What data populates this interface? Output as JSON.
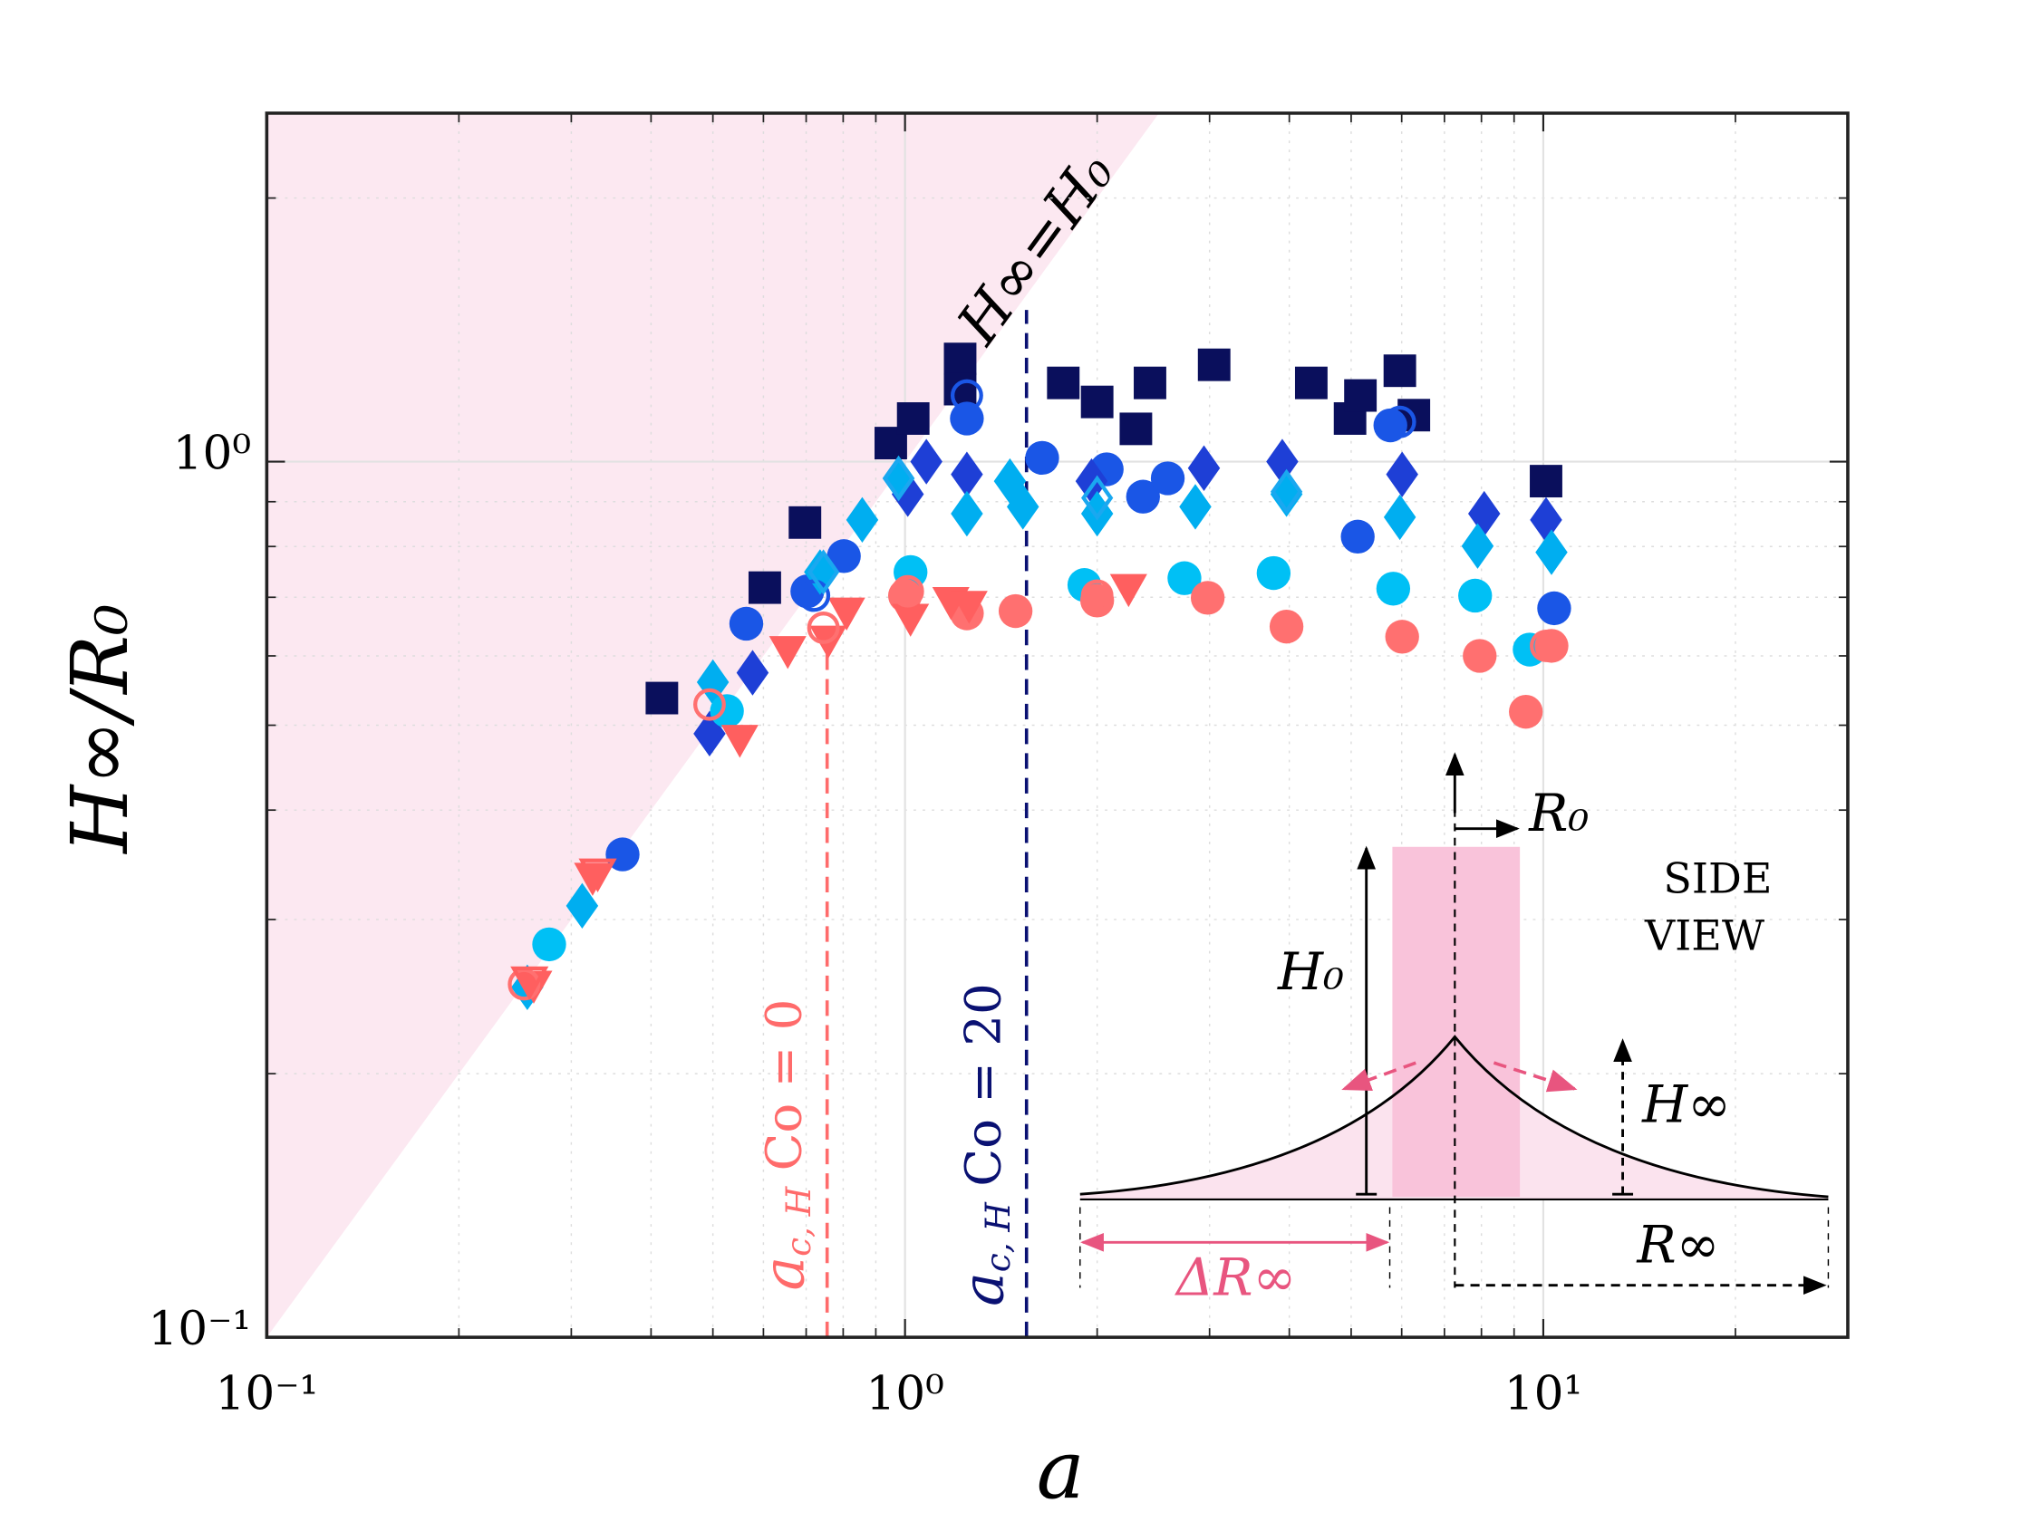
{
  "chart_data": {
    "type": "scatter",
    "xlabel": "a",
    "ylabel": "H∞/R₀",
    "xscale": "log",
    "yscale": "log",
    "grid": true,
    "xlim": [
      0.1,
      30
    ],
    "ylim": [
      0.1,
      2.5
    ],
    "xticks": [
      {
        "value": 0.1,
        "label": "10⁻¹"
      },
      {
        "value": 1,
        "label": "10⁰"
      },
      {
        "value": 10,
        "label": "10¹"
      }
    ],
    "yticks": [
      {
        "value": 0.1,
        "label": "10⁻¹"
      },
      {
        "value": 1,
        "label": "10⁰"
      }
    ],
    "xminorticks": [
      0.2,
      0.3,
      0.4,
      0.5,
      0.6,
      0.7,
      0.8,
      0.9,
      2,
      3,
      4,
      5,
      6,
      7,
      8,
      9,
      20
    ],
    "yminorticks": [
      0.2,
      0.3,
      0.4,
      0.5,
      0.6,
      0.7,
      0.8,
      0.9,
      2
    ],
    "region_label": "H∞=H₀",
    "region_color": "#fce8f1",
    "threshold_lines": [
      {
        "x": 0.755,
        "ytop": 0.65,
        "color": "#ff6b6b",
        "symbol": "a",
        "subscript": "c, H",
        "text": " Co = 0"
      },
      {
        "x": 1.55,
        "ytop": 1.49,
        "color": "#0a1172",
        "symbol": "a",
        "subscript": "c, H",
        "text": " Co = 20"
      }
    ],
    "series": [
      {
        "marker": "square",
        "color": "#0a0f5c",
        "filled": true,
        "x": [
          0.416,
          0.697,
          0.603,
          0.95,
          1.03,
          1.22,
          1.22,
          1.77,
          2.0,
          2.3,
          2.42,
          3.05,
          4.33,
          4.98,
          5.17,
          5.96,
          6.27,
          10.1
        ],
        "values": [
          0.537,
          0.852,
          0.718,
          1.05,
          1.12,
          1.31,
          1.21,
          1.23,
          1.17,
          1.09,
          1.23,
          1.29,
          1.23,
          1.12,
          1.19,
          1.27,
          1.13,
          0.95
        ]
      },
      {
        "marker": "circle",
        "color": "#1a56e6",
        "filled": true,
        "x": [
          0.361,
          0.564,
          0.703,
          0.802,
          1.25,
          1.64,
          2.07,
          2.36,
          2.58,
          5.12,
          5.76,
          10.4
        ],
        "values": [
          0.356,
          0.653,
          0.711,
          0.78,
          1.12,
          1.01,
          0.98,
          0.912,
          0.957,
          0.821,
          1.1,
          0.68
        ]
      },
      {
        "marker": "diamond",
        "color": "#1e3fd6",
        "filled": true,
        "x": [
          0.494,
          0.577,
          1.01,
          1.08,
          1.25,
          1.96,
          2.94,
          3.9,
          6.01,
          8.08,
          10.1
        ],
        "values": [
          0.489,
          0.574,
          0.918,
          1.0,
          0.967,
          0.95,
          0.983,
          1.0,
          0.967,
          0.872,
          0.858
        ]
      },
      {
        "marker": "diamond",
        "color": "#00aef0",
        "filled": true,
        "x": [
          0.256,
          0.312,
          0.5,
          0.736,
          0.857,
          0.977,
          1.25,
          1.46,
          1.53,
          2.0,
          2.85,
          3.96,
          5.96,
          7.89,
          10.3
        ],
        "values": [
          0.251,
          0.311,
          0.56,
          0.748,
          0.858,
          0.957,
          0.872,
          0.95,
          0.888,
          0.872,
          0.888,
          0.918,
          0.864,
          0.801,
          0.788
        ]
      },
      {
        "marker": "circle",
        "color": "#00c0f5",
        "filled": true,
        "x": [
          0.277,
          0.526,
          1.02,
          1.91,
          2.74,
          3.78,
          5.82,
          7.82,
          9.52
        ],
        "values": [
          0.281,
          0.519,
          0.748,
          0.723,
          0.736,
          0.746,
          0.716,
          0.703,
          0.61
        ]
      },
      {
        "marker": "circle",
        "color": "#ff7070",
        "filled": true,
        "x": [
          1.0,
          1.25,
          1.49,
          2.0,
          2.98,
          3.96,
          6.01,
          7.95,
          9.39,
          10.3
        ],
        "values": [
          0.703,
          0.671,
          0.675,
          0.694,
          0.699,
          0.648,
          0.631,
          0.6,
          0.518,
          0.616
        ]
      },
      {
        "marker": "triangle-down",
        "color": "#ff5f5f",
        "filled": true,
        "x": [
          0.324,
          0.551,
          0.655,
          0.758,
          0.81,
          1.02,
          1.18,
          1.26,
          2.24,
          0.262
        ],
        "values": [
          0.336,
          0.483,
          0.61,
          0.627,
          0.675,
          0.664,
          0.694,
          0.687,
          0.718,
          0.253
        ]
      },
      {
        "marker": "circle",
        "color": "#ff7070",
        "filled": false,
        "x": [
          0.253,
          0.494,
          0.745,
          1.01,
          2.0,
          10.1
        ],
        "values": [
          0.253,
          0.528,
          0.646,
          0.711,
          0.703,
          0.616
        ]
      },
      {
        "marker": "triangle-down",
        "color": "#ff5f5f",
        "filled": false,
        "x": [
          0.33,
          0.258
        ],
        "values": [
          0.34,
          0.256
        ]
      },
      {
        "marker": "circle",
        "color": "#1a56e6",
        "filled": false,
        "x": [
          1.25,
          0.72,
          5.96
        ],
        "values": [
          1.19,
          0.703,
          1.11
        ]
      },
      {
        "marker": "diamond",
        "color": "#1aa8f0",
        "filled": false,
        "x": [
          0.745,
          0.977,
          2.0,
          3.96
        ],
        "values": [
          0.748,
          0.957,
          0.909,
          0.924
        ]
      }
    ]
  },
  "inset": {
    "title": [
      "SIDE",
      "VIEW"
    ],
    "r0": "R₀",
    "h0": "H₀",
    "hinf": "H∞",
    "rinf": "R∞",
    "drinf": "ΔR∞"
  }
}
